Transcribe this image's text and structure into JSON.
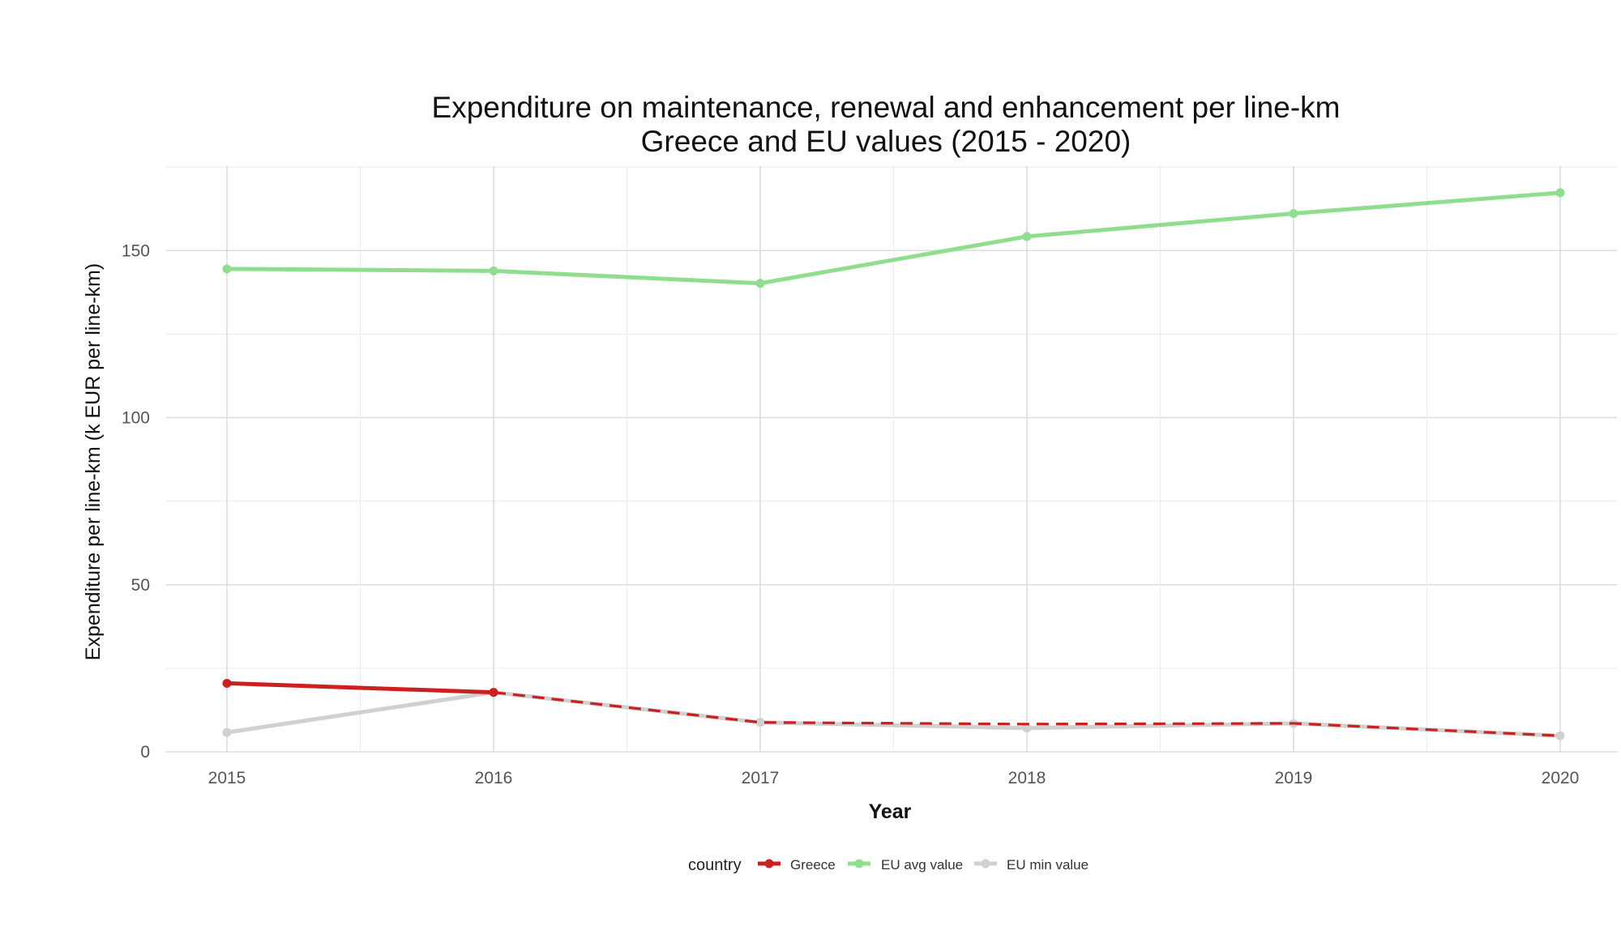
{
  "chart_data": {
    "type": "line",
    "title": "Expenditure on maintenance, renewal and enhancement per line-km",
    "subtitle": "Greece and EU values (2015 - 2020)",
    "xlabel": "Year",
    "ylabel": "Expenditure per line-km (k EUR per line-km)",
    "x": [
      2015,
      2016,
      2017,
      2018,
      2019,
      2020
    ],
    "xlim": [
      2014.77,
      2020.23
    ],
    "ylim": [
      0,
      175
    ],
    "y_ticks": [
      0,
      50,
      100,
      150
    ],
    "grid": true,
    "legend": {
      "title": "country",
      "position": "bottom"
    },
    "series": [
      {
        "name": "Greece",
        "color": "#cc1f1f",
        "values": [
          20.5,
          17.8,
          8.8,
          8.3,
          8.5,
          4.8
        ],
        "line_style": "solid-then-dashed",
        "solid_until_index": 1
      },
      {
        "name": "EU avg value",
        "color": "#90dd90",
        "values": [
          144.5,
          143.9,
          140.2,
          154.2,
          161.1,
          167.3
        ],
        "line_style": "solid"
      },
      {
        "name": "EU min value",
        "color": "#d0d0d0",
        "values": [
          5.8,
          17.8,
          8.8,
          7.1,
          8.5,
          4.8
        ],
        "line_style": "solid"
      }
    ]
  }
}
